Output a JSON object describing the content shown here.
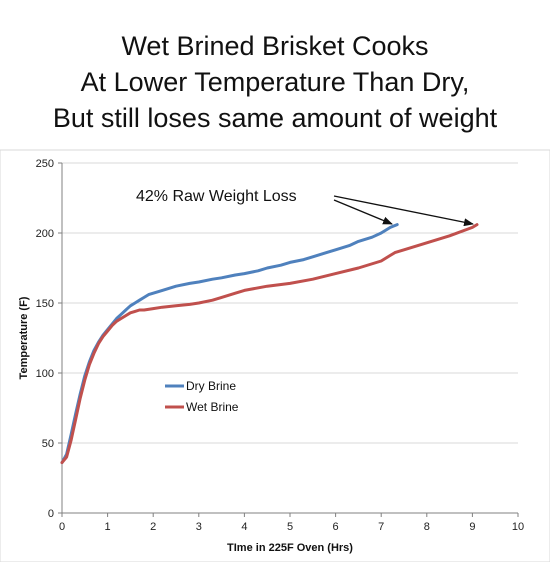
{
  "title_lines": [
    "Wet Brined Brisket Cooks",
    "At Lower Temperature Than Dry,",
    "But still loses same amount of weight"
  ],
  "colors": {
    "dry": "#4f81bd",
    "wet": "#c0504d",
    "grid": "#d9d9d9",
    "axis": "#808080"
  },
  "chart_data": {
    "type": "line",
    "title": "Wet Brined Brisket Cooks At Lower Temperature Than Dry, But still loses same amount of weight",
    "xlabel": "TIme in 225F Oven (Hrs)",
    "ylabel": "Temperature (F)",
    "xlim": [
      0,
      10
    ],
    "ylim": [
      0,
      250
    ],
    "xticks": [
      "0",
      "1",
      "2",
      "3",
      "4",
      "5",
      "6",
      "7",
      "8",
      "9",
      "10"
    ],
    "yticks": [
      "0",
      "50",
      "100",
      "150",
      "200",
      "250"
    ],
    "grid": "horizontal",
    "legend_position": "left-middle",
    "series": [
      {
        "name": "Dry Brine",
        "color": "#4f81bd",
        "x": [
          0,
          0.1,
          0.2,
          0.3,
          0.4,
          0.5,
          0.6,
          0.7,
          0.8,
          0.9,
          1.0,
          1.1,
          1.2,
          1.3,
          1.4,
          1.5,
          1.6,
          1.7,
          1.8,
          1.9,
          2.0,
          2.2,
          2.5,
          2.8,
          3.0,
          3.3,
          3.5,
          3.8,
          4.0,
          4.3,
          4.5,
          4.8,
          5.0,
          5.3,
          5.5,
          5.8,
          6.0,
          6.3,
          6.5,
          6.8,
          7.0,
          7.2,
          7.35
        ],
        "y": [
          36,
          42,
          56,
          71,
          85,
          98,
          108,
          116,
          122,
          127,
          131,
          135,
          139,
          142,
          145,
          148,
          150,
          152,
          154,
          156,
          157,
          159,
          162,
          164,
          165,
          167,
          168,
          170,
          171,
          173,
          175,
          177,
          179,
          181,
          183,
          186,
          188,
          191,
          194,
          197,
          200,
          204,
          206
        ]
      },
      {
        "name": "Wet Brine",
        "color": "#c0504d",
        "x": [
          0,
          0.1,
          0.2,
          0.3,
          0.4,
          0.5,
          0.6,
          0.7,
          0.8,
          0.9,
          1.0,
          1.1,
          1.2,
          1.3,
          1.4,
          1.5,
          1.6,
          1.7,
          1.8,
          2.0,
          2.2,
          2.5,
          2.8,
          3.0,
          3.3,
          3.5,
          3.8,
          4.0,
          4.5,
          5.0,
          5.5,
          6.0,
          6.5,
          7.0,
          7.2,
          7.3,
          7.5,
          8.0,
          8.5,
          9.0,
          9.1
        ],
        "y": [
          36,
          40,
          52,
          67,
          82,
          95,
          106,
          114,
          121,
          126,
          130,
          134,
          137,
          139,
          141,
          143,
          144,
          145,
          145,
          146,
          147,
          148,
          149,
          150,
          152,
          154,
          157,
          159,
          162,
          164,
          167,
          171,
          175,
          180,
          184,
          186,
          188,
          193,
          198,
          204,
          206
        ]
      }
    ],
    "annotations": [
      {
        "text": "42% Raw Weight Loss"
      }
    ]
  }
}
